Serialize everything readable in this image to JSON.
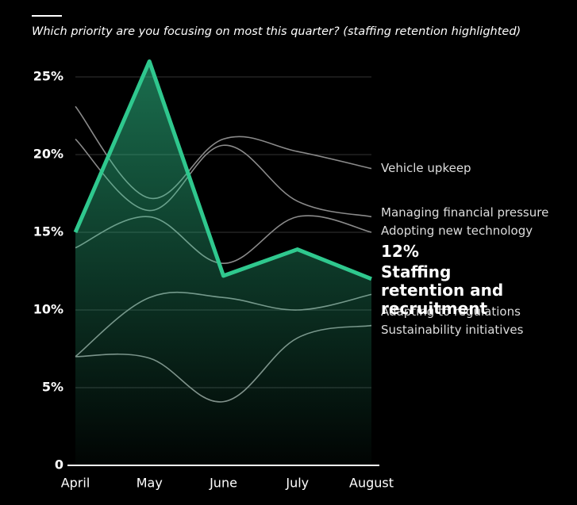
{
  "chart_data": {
    "type": "line",
    "title": "Which priority are you focusing on most this quarter? (staffing retention highlighted)",
    "categories": [
      "April",
      "May",
      "June",
      "July",
      "August"
    ],
    "ylim": [
      0,
      25
    ],
    "yticks": [
      {
        "value": 0,
        "label": "0"
      },
      {
        "value": 5,
        "label": "5%"
      },
      {
        "value": 10,
        "label": "10%"
      },
      {
        "value": 15,
        "label": "15%"
      },
      {
        "value": 20,
        "label": "20%"
      },
      {
        "value": 25,
        "label": "25%"
      }
    ],
    "grid": true,
    "series": [
      {
        "name": "Vehicle upkeep",
        "color": "#8a8a8a",
        "values": [
          23.1,
          17.2,
          21,
          20.2,
          19.1
        ]
      },
      {
        "name": "Managing financial pressure",
        "color": "#8a8a8a",
        "values": [
          21,
          16.4,
          20.6,
          17,
          16
        ]
      },
      {
        "name": "Adopting new technology",
        "color": "#8a8a8a",
        "values": [
          14,
          16,
          13,
          16,
          15
        ]
      },
      {
        "name": "Staffing retention and recruitment",
        "color": "#2fc88e",
        "highlight": true,
        "values": [
          15,
          26,
          12.2,
          13.9,
          12
        ],
        "value_labels": [
          null,
          null,
          null,
          null,
          "12%"
        ]
      },
      {
        "name": "Adapting to regulations",
        "color": "#8a8a8a",
        "values": [
          7,
          10.8,
          10.8,
          10,
          11
        ]
      },
      {
        "name": "Sustainability initiatives",
        "color": "#8a8a8a",
        "values": [
          7,
          6.9,
          4.1,
          8.2,
          9
        ]
      }
    ]
  }
}
